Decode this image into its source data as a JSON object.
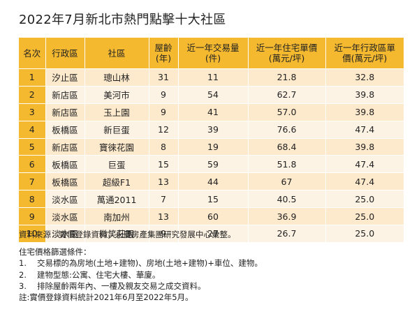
{
  "title": "2022年7月新北市熱門點擊十大社區",
  "table": {
    "headers": [
      "名次",
      "行政區",
      "社區",
      "屋齡\n(年)",
      "近一年交易量\n(件)",
      "近一年住宅單價\n(萬元/坪)",
      "近一年行政區單\n價(萬元/坪)"
    ],
    "rows": [
      [
        "1",
        "汐止區",
        "璁山林",
        "31",
        "11",
        "21.8",
        "32.8"
      ],
      [
        "2",
        "新店區",
        "美河市",
        "9",
        "54",
        "62.7",
        "39.8"
      ],
      [
        "3",
        "新店區",
        "玉上園",
        "9",
        "41",
        "57.0",
        "39.8"
      ],
      [
        "4",
        "板橋區",
        "新巨蛋",
        "12",
        "39",
        "76.6",
        "47.4"
      ],
      [
        "5",
        "新店區",
        "寶徠花園",
        "8",
        "19",
        "68.4",
        "39.8"
      ],
      [
        "6",
        "板橋區",
        "巨蛋",
        "15",
        "59",
        "51.8",
        "47.4"
      ],
      [
        "7",
        "板橋區",
        "超級F1",
        "13",
        "44",
        "67",
        "47.4"
      ],
      [
        "8",
        "淡水區",
        "萬通2011",
        "7",
        "15",
        "40.5",
        "25.0"
      ],
      [
        "9",
        "淡水區",
        "南加州",
        "13",
        "60",
        "36.9",
        "25.0"
      ],
      [
        "10",
        "淡水區",
        "微笑莊園",
        "9",
        "27",
        "26.7",
        "25.0"
      ]
    ]
  },
  "notes": {
    "source": "資料來源：實價登錄資料；永慶房產集團研究發展中心彙整。",
    "criteria_title": "住宅價格篩選條件：",
    "criteria": [
      {
        "num": "1.",
        "text": "交易標的為房地(土地+建物)、房地(土地+建物)+車位、建物。"
      },
      {
        "num": "2.",
        "text": "建物型態:公寓、住宅大樓、華廈。"
      },
      {
        "num": "3.",
        "text": "排除屋齡兩年內、一樓及親友交易之成交資料。"
      }
    ],
    "footnote": "註:實價登錄資料統計2021年6月至2022年5月。"
  },
  "colors": {
    "header_bg": "#f5b92f",
    "row_odd_bg": "#fde9cc",
    "row_even_bg": "#fdf3e4"
  }
}
